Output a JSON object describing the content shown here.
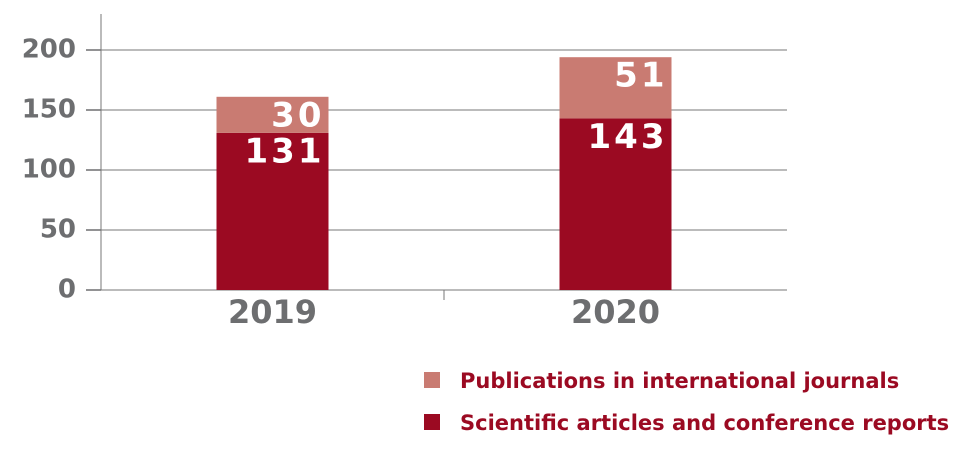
{
  "chart_data": {
    "type": "stacked_bar",
    "categories": [
      "2019",
      "2020"
    ],
    "series": [
      {
        "name": "Scientific articles and conference reports",
        "color": "#9b0a22",
        "values": [
          131,
          143
        ]
      },
      {
        "name": "Publications in international journals",
        "color": "#c97b72",
        "values": [
          30,
          51
        ]
      }
    ],
    "ylim": [
      0,
      230
    ],
    "yticks": [
      0,
      50,
      100,
      150,
      200
    ],
    "grid": true
  }
}
